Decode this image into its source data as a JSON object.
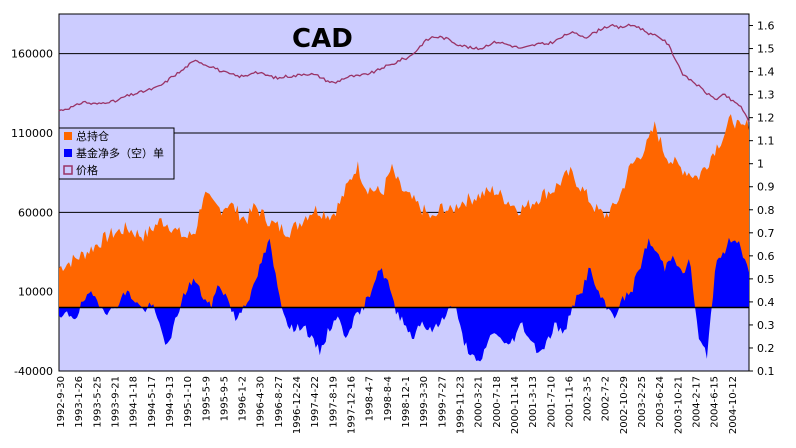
{
  "chart_data": {
    "type": "area",
    "title": "CAD",
    "left_axis": {
      "min": -40000,
      "max": 185000,
      "ticks": [
        "160000",
        "110000",
        "60000",
        "10000",
        "-40000"
      ],
      "tick_values": [
        160000,
        110000,
        60000,
        10000,
        -40000
      ]
    },
    "right_axis": {
      "min": 0.1,
      "max": 1.65,
      "ticks": [
        "1.6",
        "1.5",
        "1.4",
        "1.3",
        "1.2",
        "1.1",
        "1",
        "0.9",
        "0.8",
        "0.7",
        "0.6",
        "0.5",
        "0.4",
        "0.3",
        "0.2",
        "0.1"
      ],
      "tick_values": [
        1.6,
        1.5,
        1.4,
        1.3,
        1.2,
        1.1,
        1.0,
        0.9,
        0.8,
        0.7,
        0.6,
        0.5,
        0.4,
        0.3,
        0.2,
        0.1
      ]
    },
    "x_labels": [
      "1992-9-30",
      "1993-1-26",
      "1993-5-25",
      "1993-9-21",
      "1994-1-18",
      "1994-5-17",
      "1994-9-13",
      "1995-1-10",
      "1995-5-9",
      "1995-9-5",
      "1996-1-2",
      "1996-4-30",
      "1996-8-27",
      "1996-12-24",
      "1997-4-22",
      "1997-8-19",
      "1997-12-16",
      "1998-4-7",
      "1998-8-4",
      "1998-12-1",
      "1999-3-30",
      "1999-7-27",
      "1999-11-23",
      "2000-3-21",
      "2000-7-18",
      "2000-11-14",
      "2001-3-13",
      "2001-7-10",
      "2001-11-6",
      "2002-3-5",
      "2002-7-2",
      "2002-10-29",
      "2003-2-25",
      "2003-6-24",
      "2003-10-21",
      "2004-2-17",
      "2004-6-15",
      "2004-10-12"
    ],
    "legend": [
      "总持仓",
      "基金净多（空）单",
      "价格"
    ],
    "series": [
      {
        "name": "总持仓",
        "axis": "left",
        "color": "#ff6600",
        "values": [
          25000,
          28000,
          31000,
          34000,
          38000,
          42000,
          46000,
          48000,
          50000,
          47000,
          45000,
          50000,
          55000,
          52000,
          47000,
          44000,
          48000,
          72000,
          65000,
          62000,
          66000,
          60000,
          55000,
          64000,
          58000,
          53000,
          50000,
          48000,
          52000,
          58000,
          62000,
          60000,
          58000,
          66000,
          78000,
          90000,
          76000,
          74000,
          72000,
          88000,
          76000,
          70000,
          65000,
          60000,
          55000,
          64000,
          60000,
          66000,
          68000,
          70000,
          72000,
          74000,
          70000,
          66000,
          62000,
          64000,
          68000,
          72000,
          74000,
          80000,
          85000,
          78000,
          70000,
          62000,
          58000,
          62000,
          72000,
          88000,
          95000,
          102000,
          115000,
          98000,
          92000,
          88000,
          85000,
          82000,
          90000,
          100000,
          108000,
          120000,
          112000,
          116000
        ]
      },
      {
        "name": "基金净多（空）单",
        "axis": "left",
        "color": "#0000ff",
        "values": [
          -8000,
          -4000,
          -6000,
          5000,
          8000,
          2000,
          -4000,
          3000,
          10000,
          5000,
          -2000,
          2000,
          -12000,
          -26000,
          -5000,
          10000,
          18000,
          8000,
          0,
          15000,
          6000,
          -8000,
          2000,
          10000,
          28000,
          42000,
          12000,
          -8000,
          -15000,
          -10000,
          -20000,
          -28000,
          -15000,
          -5000,
          -18000,
          -8000,
          -2000,
          10000,
          25000,
          18000,
          -3000,
          -8000,
          -20000,
          -8000,
          -15000,
          -12000,
          -3000,
          2000,
          -20000,
          -30000,
          -37000,
          -20000,
          -15000,
          -25000,
          -20000,
          -10000,
          -20000,
          -28000,
          -22000,
          -10000,
          -18000,
          2000,
          8000,
          25000,
          10000,
          0,
          -5000,
          5000,
          10000,
          25000,
          42000,
          35000,
          25000,
          35000,
          20000,
          30000,
          -20000,
          -30000,
          25000,
          35000,
          45000,
          40000,
          20000
        ]
      },
      {
        "name": "价格",
        "axis": "right",
        "color": "#993366",
        "values": [
          1.23,
          1.24,
          1.25,
          1.27,
          1.26,
          1.26,
          1.27,
          1.27,
          1.29,
          1.3,
          1.31,
          1.32,
          1.33,
          1.35,
          1.38,
          1.4,
          1.43,
          1.45,
          1.43,
          1.42,
          1.4,
          1.39,
          1.38,
          1.38,
          1.4,
          1.39,
          1.38,
          1.37,
          1.38,
          1.38,
          1.39,
          1.39,
          1.38,
          1.36,
          1.35,
          1.37,
          1.38,
          1.38,
          1.39,
          1.4,
          1.42,
          1.43,
          1.45,
          1.46,
          1.49,
          1.53,
          1.55,
          1.55,
          1.54,
          1.52,
          1.51,
          1.5,
          1.5,
          1.52,
          1.53,
          1.52,
          1.51,
          1.5,
          1.51,
          1.52,
          1.52,
          1.53,
          1.55,
          1.57,
          1.56,
          1.55,
          1.57,
          1.59,
          1.6,
          1.59,
          1.6,
          1.6,
          1.58,
          1.56,
          1.55,
          1.52,
          1.45,
          1.38,
          1.36,
          1.33,
          1.3,
          1.28,
          1.3,
          1.27,
          1.25,
          1.18
        ]
      }
    ]
  }
}
